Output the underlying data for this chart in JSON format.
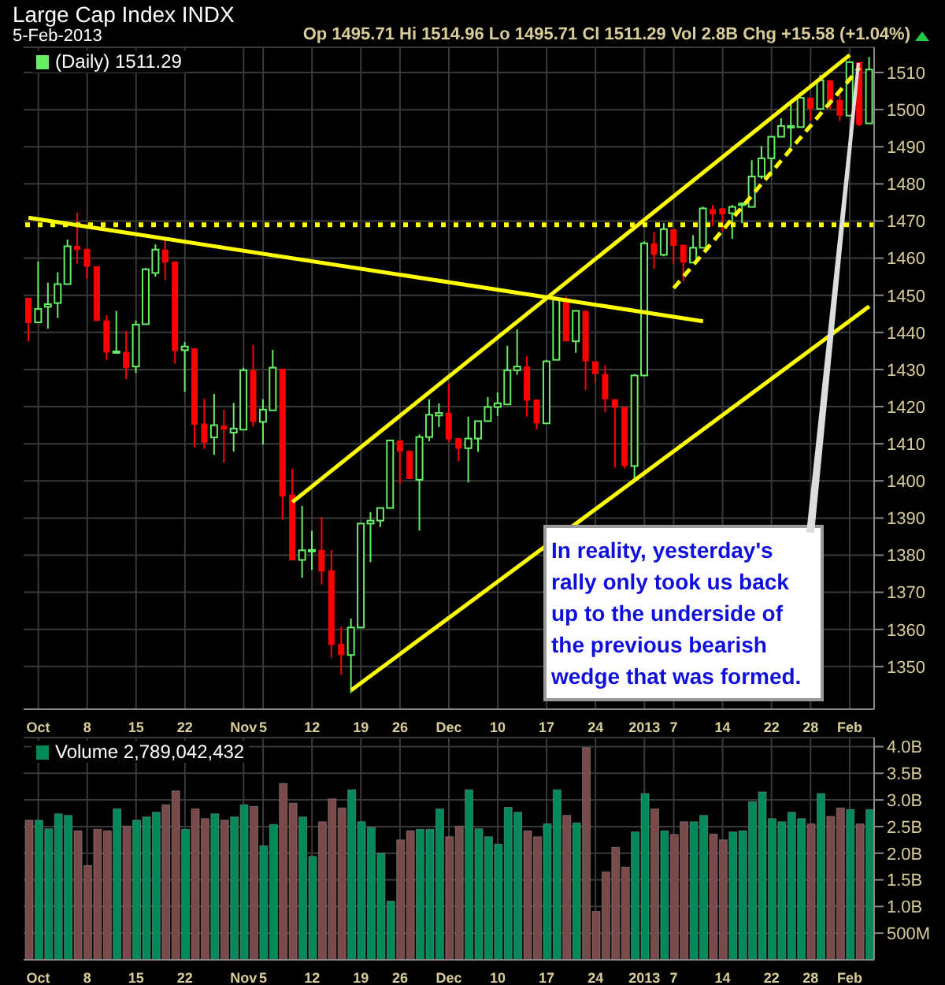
{
  "chart_data": [
    {
      "type": "candlestick",
      "title": "Large Cap Index INDX",
      "subtitle": "5-Feb-2013",
      "annotations": [
        "Op 1495.71 Hi 1514.96 Lo 1495.71 Cl 1511.29 Vol 2.8B Chg +15.58 (+1.04%)",
        "In reality, yesterday's rally only took us back up to the underside of the previous bearish wedge that was formed."
      ],
      "categories": [
        null,
        "Oct",
        null,
        null,
        null,
        null,
        "8",
        null,
        null,
        null,
        null,
        "15",
        null,
        null,
        null,
        null,
        "22",
        null,
        null,
        null,
        null,
        null,
        "Nov",
        null,
        "5",
        null,
        null,
        null,
        null,
        "12",
        null,
        null,
        null,
        null,
        "19",
        null,
        null,
        null,
        "26",
        null,
        null,
        null,
        null,
        "Dec",
        null,
        null,
        null,
        null,
        "10",
        null,
        null,
        null,
        null,
        "17",
        null,
        null,
        null,
        null,
        "24",
        null,
        null,
        null,
        null,
        "2013",
        null,
        null,
        "7",
        null,
        null,
        null,
        null,
        "14",
        null,
        null,
        null,
        null,
        "22",
        null,
        null,
        null,
        "28",
        null,
        null,
        null,
        "Feb",
        null,
        null
      ],
      "ylim": [
        1338.5,
        1516.8
      ],
      "yticks": [
        1350,
        1360,
        1370,
        1380,
        1390,
        1400,
        1410,
        1420,
        1430,
        1440,
        1450,
        1460,
        1470,
        1480,
        1490,
        1500,
        1510
      ],
      "grid": true,
      "legend": "top left",
      "ref_lines": [
        {
          "axis": "y",
          "value": 1469,
          "color": "#ffff00",
          "line_style": "dotted"
        }
      ],
      "series": [
        {
          "type": "candlestick",
          "name": "(Daily) 1511.29",
          "ohlc": [
            [
              1449.3,
              1449.3,
              1437.6,
              1442.5
            ],
            [
              1442.7,
              1459.1,
              1442.7,
              1446.3
            ],
            [
              1446.9,
              1453.4,
              1441.0,
              1447.6
            ],
            [
              1447.9,
              1456.2,
              1443.9,
              1453.0
            ],
            [
              1453.0,
              1465.0,
              1453.0,
              1463.2
            ],
            [
              1463.3,
              1472.2,
              1458.5,
              1462.2
            ],
            [
              1462.5,
              1462.5,
              1454.5,
              1457.7
            ],
            [
              1457.8,
              1457.8,
              1443.1,
              1443.1
            ],
            [
              1443.2,
              1444.6,
              1432.5,
              1434.6
            ],
            [
              1434.6,
              1445.8,
              1434.6,
              1434.9
            ],
            [
              1434.7,
              1440.4,
              1427.4,
              1430.4
            ],
            [
              1430.8,
              1443.2,
              1429.1,
              1442.1
            ],
            [
              1442.2,
              1457.4,
              1442.2,
              1457.0
            ],
            [
              1456.0,
              1463.7,
              1455.0,
              1462.3
            ],
            [
              1462.3,
              1465.6,
              1454.1,
              1458.8
            ],
            [
              1459.1,
              1459.1,
              1431.6,
              1435.0
            ],
            [
              1435.2,
              1437.4,
              1424.0,
              1436.2
            ],
            [
              1435.7,
              1435.7,
              1409.1,
              1415.1
            ],
            [
              1415.4,
              1422.1,
              1408.6,
              1410.3
            ],
            [
              1411.7,
              1423.4,
              1407.0,
              1415.0
            ],
            [
              1414.9,
              1419.2,
              1404.9,
              1413.8
            ],
            [
              1413.0,
              1421.0,
              1407.9,
              1414.1
            ],
            [
              1413.8,
              1430.5,
              1413.8,
              1429.8
            ],
            [
              1429.8,
              1436.6,
              1414.6,
              1415.9
            ],
            [
              1415.9,
              1422.0,
              1409.8,
              1419.2
            ],
            [
              1419.0,
              1435.3,
              1419.0,
              1430.5
            ],
            [
              1430.2,
              1430.2,
              1389.5,
              1395.8
            ],
            [
              1396.3,
              1403.2,
              1378.6,
              1378.6
            ],
            [
              1378.7,
              1393.3,
              1373.9,
              1381.3
            ],
            [
              1381.0,
              1386.6,
              1376.0,
              1381.4
            ],
            [
              1381.4,
              1390.3,
              1372.1,
              1375.6
            ],
            [
              1375.9,
              1381.4,
              1352.4,
              1355.8
            ],
            [
              1356.1,
              1360.7,
              1347.7,
              1353.1
            ],
            [
              1353.1,
              1362.9,
              1342.8,
              1360.5
            ],
            [
              1360.5,
              1388.5,
              1360.5,
              1388.5
            ],
            [
              1388.5,
              1391.6,
              1378.1,
              1389.3
            ],
            [
              1389.3,
              1392.7,
              1387.6,
              1392.7
            ],
            [
              1392.7,
              1410.9,
              1392.7,
              1410.9
            ],
            [
              1410.9,
              1410.9,
              1399.4,
              1407.9
            ],
            [
              1408.1,
              1408.1,
              1400.5,
              1400.5
            ],
            [
              1400.3,
              1412.5,
              1386.6,
              1411.8
            ],
            [
              1411.8,
              1422.0,
              1410.7,
              1417.8
            ],
            [
              1417.6,
              1420.9,
              1414.5,
              1418.3
            ],
            [
              1418.3,
              1426.2,
              1410.4,
              1411.2
            ],
            [
              1411.5,
              1411.5,
              1405.3,
              1408.7
            ],
            [
              1408.8,
              1417.3,
              1399.6,
              1411.4
            ],
            [
              1411.4,
              1416.1,
              1407.8,
              1416.1
            ],
            [
              1416.1,
              1422.6,
              1416.1,
              1419.9
            ],
            [
              1419.9,
              1423.8,
              1417.5,
              1420.9
            ],
            [
              1420.6,
              1436.4,
              1420.6,
              1429.8
            ],
            [
              1429.8,
              1440.8,
              1428.6,
              1430.8
            ],
            [
              1430.8,
              1433.6,
              1417.3,
              1421.6
            ],
            [
              1421.9,
              1421.9,
              1413.8,
              1415.5
            ],
            [
              1415.5,
              1432.6,
              1415.5,
              1432.2
            ],
            [
              1432.6,
              1449.6,
              1432.6,
              1448.9
            ],
            [
              1448.6,
              1449.6,
              1437.6,
              1437.6
            ],
            [
              1437.6,
              1445.8,
              1434.5,
              1445.8
            ],
            [
              1445.8,
              1445.8,
              1424.5,
              1432.2
            ],
            [
              1432.2,
              1432.2,
              1426.5,
              1428.8
            ],
            [
              1428.8,
              1431.2,
              1418.5,
              1422.0
            ],
            [
              1422.0,
              1422.0,
              1403.6,
              1419.7
            ],
            [
              1419.9,
              1419.9,
              1403.3,
              1404.0
            ],
            [
              1404.0,
              1428.8,
              1399.6,
              1428.4
            ],
            [
              1428.4,
              1464.5,
              1428.4,
              1464.0
            ],
            [
              1464.0,
              1467.0,
              1457.1,
              1460.9
            ],
            [
              1460.9,
              1469.5,
              1460.5,
              1467.8
            ],
            [
              1467.8,
              1467.8,
              1458.5,
              1463.3
            ],
            [
              1463.6,
              1463.6,
              1453.8,
              1458.8
            ],
            [
              1458.8,
              1466.2,
              1458.8,
              1462.8
            ],
            [
              1462.8,
              1473.9,
              1462.8,
              1473.4
            ],
            [
              1473.2,
              1474.3,
              1468.7,
              1471.8
            ],
            [
              1473.4,
              1473.4,
              1467.3,
              1471.8
            ],
            [
              1472.1,
              1474.3,
              1465.2,
              1473.8
            ],
            [
              1474.3,
              1475.0,
              1469.4,
              1474.7
            ],
            [
              1473.8,
              1486.4,
              1473.8,
              1482.0
            ],
            [
              1482.0,
              1490.2,
              1481.4,
              1486.9
            ],
            [
              1486.9,
              1492.7,
              1482.0,
              1492.7
            ],
            [
              1492.7,
              1497.7,
              1492.7,
              1495.6
            ],
            [
              1495.3,
              1502.6,
              1489.9,
              1495.6
            ],
            [
              1495.3,
              1503.2,
              1495.3,
              1503.2
            ],
            [
              1503.2,
              1503.2,
              1497.0,
              1500.2
            ],
            [
              1500.2,
              1509.4,
              1500.2,
              1507.9
            ],
            [
              1507.9,
              1507.9,
              1500.1,
              1502.0
            ],
            [
              1502.6,
              1504.1,
              1497.0,
              1498.4
            ],
            [
              1498.4,
              1512.8,
              1498.4,
              1512.8
            ],
            [
              1512.8,
              1512.8,
              1495.6,
              1495.9
            ],
            [
              1496.3,
              1514.2,
              1496.3,
              1510.8
            ]
          ],
          "colors": [
            "#ff0000",
            "#66ee66",
            "#66ee66",
            "#66ee66",
            "#66ee66",
            "#ff0000",
            "#ff0000",
            "#ff0000",
            "#ff0000",
            "#66ee66",
            "#ff0000",
            "#66ee66",
            "#66ee66",
            "#66ee66",
            "#ff0000",
            "#ff0000",
            "#66ee66",
            "#ff0000",
            "#ff0000",
            "#66ee66",
            "#ff0000",
            "#66ee66",
            "#66ee66",
            "#ff0000",
            "#66ee66",
            "#66ee66",
            "#ff0000",
            "#ff0000",
            "#66ee66",
            "#66ee66",
            "#ff0000",
            "#ff0000",
            "#ff0000",
            "#66ee66",
            "#66ee66",
            "#66ee66",
            "#66ee66",
            "#66ee66",
            "#ff0000",
            "#ff0000",
            "#66ee66",
            "#66ee66",
            "#66ee66",
            "#ff0000",
            "#ff0000",
            "#66ee66",
            "#66ee66",
            "#66ee66",
            "#66ee66",
            "#66ee66",
            "#66ee66",
            "#ff0000",
            "#ff0000",
            "#66ee66",
            "#66ee66",
            "#ff0000",
            "#66ee66",
            "#ff0000",
            "#ff0000",
            "#ff0000",
            "#ff0000",
            "#ff0000",
            "#66ee66",
            "#66ee66",
            "#ff0000",
            "#66ee66",
            "#ff0000",
            "#ff0000",
            "#66ee66",
            "#66ee66",
            "#ff0000",
            "#ff0000",
            "#66ee66",
            "#66ee66",
            "#66ee66",
            "#66ee66",
            "#66ee66",
            "#66ee66",
            "#66ee66",
            "#66ee66",
            "#ff0000",
            "#66ee66",
            "#ff0000",
            "#ff0000",
            "#66ee66",
            "#ff0000",
            "#66ee66"
          ]
        },
        {
          "type": "line",
          "color": "#ffff00",
          "values": [
            1470.9,
            null,
            null,
            null,
            null,
            null,
            null,
            null,
            null,
            null,
            null,
            null,
            null,
            null,
            null,
            null,
            null,
            null,
            null,
            null,
            null,
            null,
            null,
            null,
            null,
            null,
            null,
            null,
            null,
            null,
            null,
            null,
            null,
            null,
            null,
            null,
            null,
            null,
            null,
            null,
            null,
            null,
            null,
            null,
            null,
            null,
            null,
            null,
            null,
            null,
            null,
            null,
            null,
            null,
            null,
            null,
            null,
            null,
            null,
            null,
            null,
            null,
            null,
            null,
            null,
            null,
            null,
            null,
            null,
            1443.0,
            null,
            null,
            null,
            null,
            null,
            null,
            null,
            null,
            null,
            null,
            null,
            null,
            null,
            null,
            null,
            null,
            null
          ]
        },
        {
          "type": "line",
          "color": "#ffff00",
          "values": [
            null,
            null,
            null,
            null,
            null,
            null,
            null,
            null,
            null,
            null,
            null,
            null,
            null,
            null,
            null,
            null,
            null,
            null,
            null,
            null,
            null,
            null,
            null,
            null,
            null,
            null,
            null,
            1394.3,
            null,
            null,
            null,
            null,
            null,
            null,
            null,
            null,
            null,
            null,
            null,
            null,
            null,
            null,
            null,
            null,
            null,
            null,
            null,
            null,
            null,
            null,
            null,
            null,
            null,
            null,
            null,
            null,
            null,
            null,
            null,
            null,
            null,
            null,
            null,
            null,
            null,
            null,
            null,
            null,
            null,
            null,
            null,
            null,
            null,
            null,
            null,
            null,
            null,
            null,
            null,
            null,
            null,
            null,
            null,
            null,
            1514.7,
            null,
            null
          ]
        },
        {
          "type": "line",
          "color": "#ffff00",
          "values": [
            null,
            null,
            null,
            null,
            null,
            null,
            null,
            null,
            null,
            null,
            null,
            null,
            null,
            null,
            null,
            null,
            null,
            null,
            null,
            null,
            null,
            null,
            null,
            null,
            null,
            null,
            null,
            null,
            null,
            null,
            null,
            null,
            null,
            1343.6,
            null,
            null,
            null,
            null,
            null,
            null,
            null,
            null,
            null,
            null,
            null,
            null,
            null,
            null,
            null,
            null,
            null,
            null,
            null,
            null,
            null,
            null,
            null,
            null,
            null,
            null,
            null,
            null,
            null,
            null,
            null,
            null,
            null,
            null,
            null,
            null,
            null,
            null,
            null,
            null,
            null,
            null,
            null,
            null,
            null,
            null,
            null,
            null,
            null,
            null,
            null,
            null,
            1447.0
          ]
        },
        {
          "type": "line",
          "color": "#ffff00",
          "line_style": "dashed",
          "values": [
            null,
            null,
            null,
            null,
            null,
            null,
            null,
            null,
            null,
            null,
            null,
            null,
            null,
            null,
            null,
            null,
            null,
            null,
            null,
            null,
            null,
            null,
            null,
            null,
            null,
            null,
            null,
            null,
            null,
            null,
            null,
            null,
            null,
            null,
            null,
            null,
            null,
            null,
            null,
            null,
            null,
            null,
            null,
            null,
            null,
            null,
            null,
            null,
            null,
            null,
            null,
            null,
            null,
            null,
            null,
            null,
            null,
            null,
            null,
            null,
            null,
            null,
            null,
            null,
            null,
            null,
            1451.9,
            null,
            null,
            null,
            null,
            null,
            null,
            null,
            null,
            null,
            null,
            null,
            null,
            null,
            null,
            null,
            null,
            null,
            null,
            1511.3,
            null
          ]
        }
      ]
    },
    {
      "type": "bar",
      "categories": [
        null,
        "Oct",
        null,
        null,
        null,
        null,
        "8",
        null,
        null,
        null,
        null,
        "15",
        null,
        null,
        null,
        null,
        "22",
        null,
        null,
        null,
        null,
        null,
        "Nov",
        null,
        "5",
        null,
        null,
        null,
        null,
        "12",
        null,
        null,
        null,
        null,
        "19",
        null,
        null,
        null,
        "26",
        null,
        null,
        null,
        null,
        "Dec",
        null,
        null,
        null,
        null,
        "10",
        null,
        null,
        null,
        null,
        "17",
        null,
        null,
        null,
        null,
        "24",
        null,
        null,
        null,
        null,
        "2013",
        null,
        null,
        "7",
        null,
        null,
        null,
        null,
        "14",
        null,
        null,
        null,
        null,
        "22",
        null,
        null,
        null,
        "28",
        null,
        null,
        null,
        "Feb",
        null,
        null
      ],
      "ylim": [
        0,
        4170000000
      ],
      "yticks": [
        {
          "value": 500000000,
          "label": "500M"
        },
        {
          "value": 1000000000,
          "label": "1.0B"
        },
        {
          "value": 1500000000,
          "label": "1.5B"
        },
        {
          "value": 2000000000,
          "label": "2.0B"
        },
        {
          "value": 2500000000,
          "label": "2.5B"
        },
        {
          "value": 3000000000,
          "label": "3.0B"
        },
        {
          "value": 3500000000,
          "label": "3.5B"
        },
        {
          "value": 4000000000,
          "label": "4.0B"
        }
      ],
      "grid": true,
      "legend": "top left",
      "series": [
        {
          "name": "Volume 2,789,042,432",
          "values": [
            2620000000,
            2620000000,
            2460000000,
            2740000000,
            2710000000,
            2420000000,
            1770000000,
            2450000000,
            2420000000,
            2830000000,
            2510000000,
            2620000000,
            2680000000,
            2770000000,
            2910000000,
            3170000000,
            2450000000,
            2830000000,
            2650000000,
            2740000000,
            2620000000,
            2680000000,
            2910000000,
            2880000000,
            2140000000,
            2540000000,
            3310000000,
            2940000000,
            2680000000,
            1940000000,
            2590000000,
            3020000000,
            2850000000,
            3190000000,
            2590000000,
            2480000000,
            2000000000,
            1100000000,
            2250000000,
            2420000000,
            2450000000,
            2450000000,
            2830000000,
            2310000000,
            2510000000,
            3190000000,
            2460000000,
            2310000000,
            2170000000,
            2860000000,
            2770000000,
            2420000000,
            2310000000,
            2550000000,
            3190000000,
            2710000000,
            2570000000,
            3980000000,
            910000000,
            1650000000,
            2110000000,
            1740000000,
            2400000000,
            3120000000,
            2830000000,
            2420000000,
            2350000000,
            2590000000,
            2590000000,
            2710000000,
            2360000000,
            2250000000,
            2400000000,
            2420000000,
            2970000000,
            3150000000,
            2650000000,
            2590000000,
            2770000000,
            2650000000,
            2550000000,
            3120000000,
            2690000000,
            2850000000,
            2820000000,
            2550000000,
            2820000000
          ],
          "colors": [
            "#7a4a4a",
            "#008a5a",
            "#008a5a",
            "#008a5a",
            "#008a5a",
            "#7a4a4a",
            "#7a4a4a",
            "#7a4a4a",
            "#7a4a4a",
            "#008a5a",
            "#7a4a4a",
            "#008a5a",
            "#008a5a",
            "#008a5a",
            "#7a4a4a",
            "#7a4a4a",
            "#008a5a",
            "#7a4a4a",
            "#7a4a4a",
            "#008a5a",
            "#7a4a4a",
            "#008a5a",
            "#008a5a",
            "#7a4a4a",
            "#008a5a",
            "#008a5a",
            "#7a4a4a",
            "#7a4a4a",
            "#008a5a",
            "#008a5a",
            "#7a4a4a",
            "#7a4a4a",
            "#7a4a4a",
            "#008a5a",
            "#008a5a",
            "#008a5a",
            "#008a5a",
            "#008a5a",
            "#7a4a4a",
            "#7a4a4a",
            "#008a5a",
            "#008a5a",
            "#008a5a",
            "#7a4a4a",
            "#7a4a4a",
            "#008a5a",
            "#008a5a",
            "#008a5a",
            "#008a5a",
            "#008a5a",
            "#008a5a",
            "#7a4a4a",
            "#7a4a4a",
            "#008a5a",
            "#008a5a",
            "#7a4a4a",
            "#008a5a",
            "#7a4a4a",
            "#7a4a4a",
            "#7a4a4a",
            "#7a4a4a",
            "#7a4a4a",
            "#008a5a",
            "#008a5a",
            "#7a4a4a",
            "#008a5a",
            "#7a4a4a",
            "#7a4a4a",
            "#008a5a",
            "#008a5a",
            "#7a4a4a",
            "#7a4a4a",
            "#008a5a",
            "#008a5a",
            "#008a5a",
            "#008a5a",
            "#008a5a",
            "#008a5a",
            "#008a5a",
            "#008a5a",
            "#7a4a4a",
            "#008a5a",
            "#7a4a4a",
            "#7a4a4a",
            "#008a5a",
            "#7a4a4a",
            "#008a5a"
          ]
        }
      ]
    }
  ]
}
